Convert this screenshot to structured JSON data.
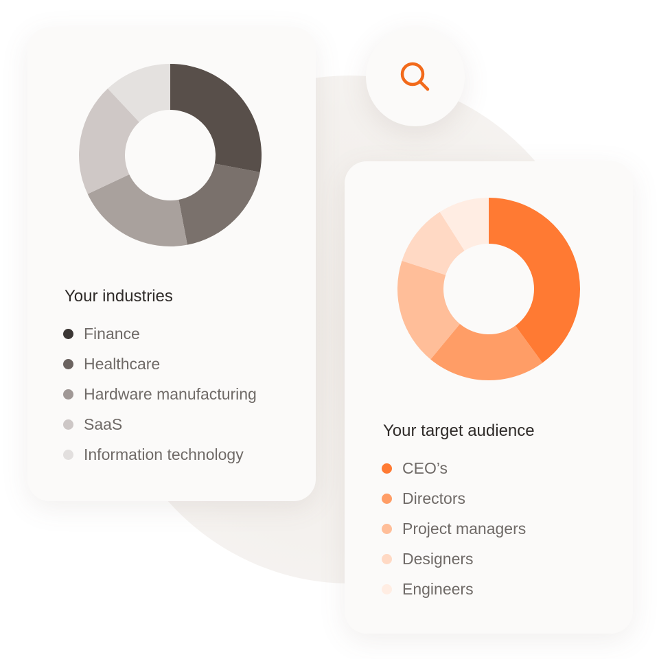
{
  "chart_data": [
    {
      "type": "pie",
      "donut": true,
      "title": "Your industries",
      "categories": [
        "Finance",
        "Healthcare",
        "Hardware manufacturing",
        "SaaS",
        "Information technology"
      ],
      "values": [
        28,
        19,
        21,
        20,
        12
      ],
      "colors": [
        "#584f4a",
        "#7a716c",
        "#a9a19d",
        "#cfc8c6",
        "#e4e1df"
      ],
      "dot_colors": [
        "#3b3634",
        "#6b6360",
        "#a09896",
        "#cdc7c6",
        "#e2dfde"
      ],
      "legend": "bottom"
    },
    {
      "type": "pie",
      "donut": true,
      "title": "Your target audience",
      "categories": [
        "CEO’s",
        "Directors",
        "Project managers",
        "Designers",
        "Engineers"
      ],
      "values": [
        40,
        21,
        19,
        11,
        9
      ],
      "colors": [
        "#ff7a33",
        "#ff9d66",
        "#ffbe99",
        "#ffd9c4",
        "#ffede3"
      ],
      "dot_colors": [
        "#ff7a33",
        "#ff9d66",
        "#ffbe99",
        "#ffd9c4",
        "#ffede3"
      ],
      "legend": "bottom"
    }
  ],
  "search": {
    "icon": "search-icon",
    "color": "#f26a1b"
  }
}
